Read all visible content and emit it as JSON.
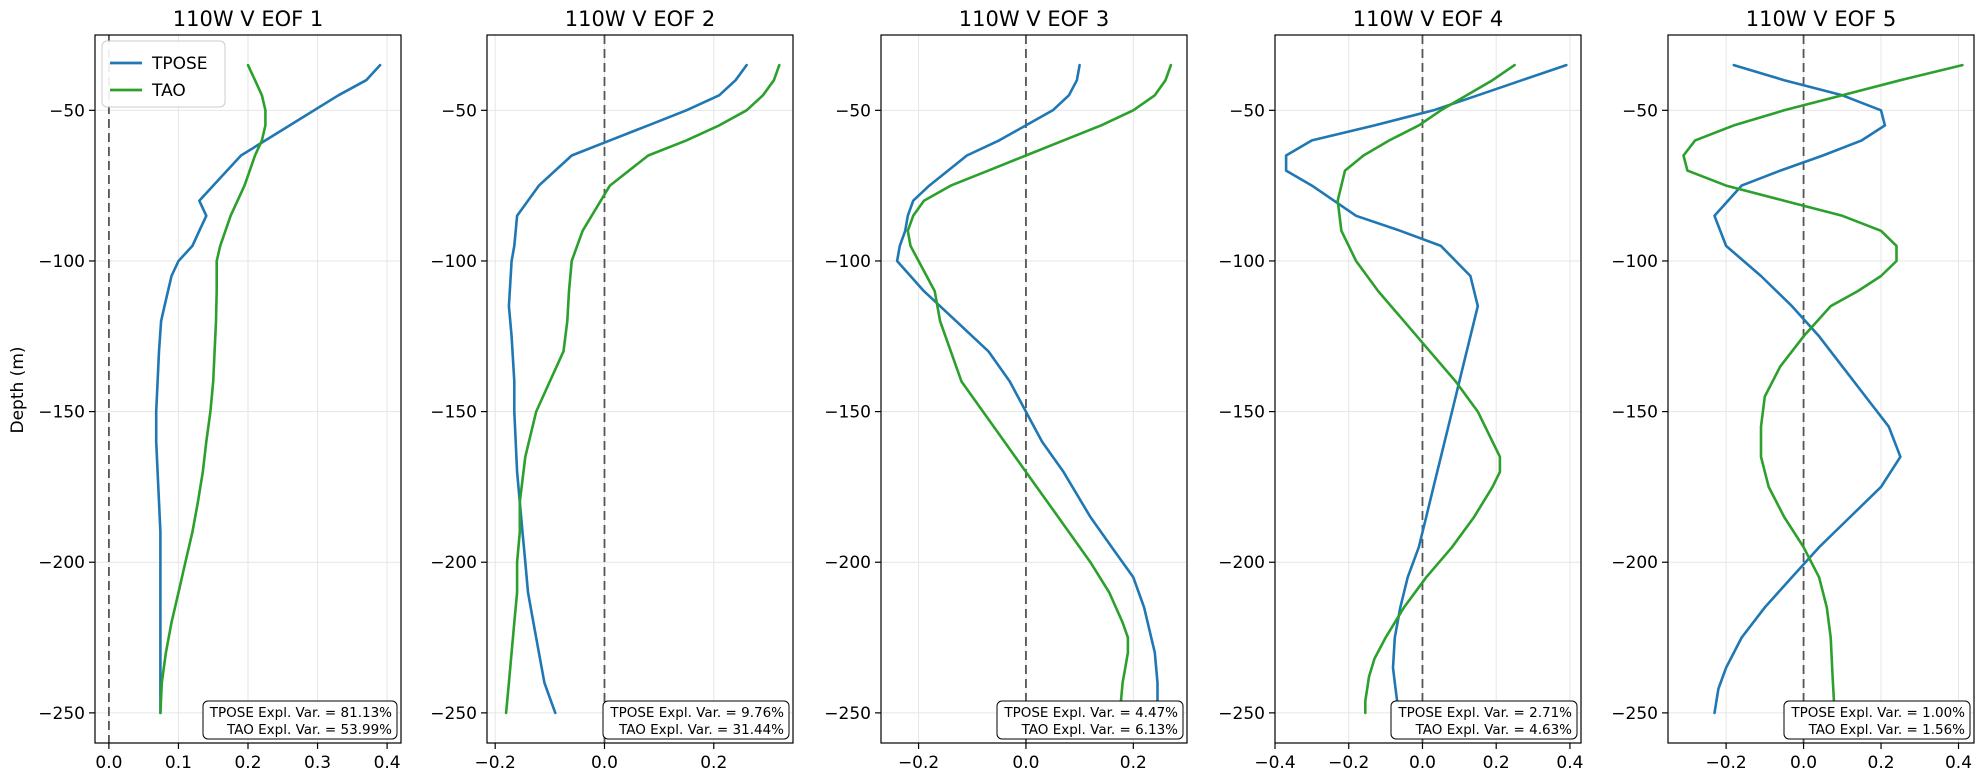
{
  "figure": {
    "ylabel": "Depth (m)",
    "legend": {
      "placement": "upper-left of first panel",
      "entries": [
        "TPOSE",
        "TAO"
      ]
    }
  },
  "colors": {
    "TPOSE": "#1f77b4",
    "TAO": "#2ca02c",
    "zero_line": "#555555",
    "grid": "#e6e6e6"
  },
  "chart_data": [
    {
      "type": "line",
      "title": "110W V EOF 1",
      "xlim": [
        -0.02,
        0.42
      ],
      "ylim": [
        -260,
        -25
      ],
      "xticks": [
        0.0,
        0.1,
        0.2,
        0.3,
        0.4
      ],
      "xtick_labels": [
        "0.0",
        "0.1",
        "0.2",
        "0.3",
        "0.4"
      ],
      "yticks": [
        -50,
        -100,
        -150,
        -200,
        -250
      ],
      "ytick_labels": [
        "−50",
        "−100",
        "−150",
        "−200",
        "−250"
      ],
      "grid": true,
      "zero_line": 0,
      "annotation": [
        "TPOSE Expl. Var. = 81.13%",
        "TAO Expl. Var. = 53.99%"
      ],
      "series": [
        {
          "name": "TPOSE",
          "x": [
            0.39,
            0.37,
            0.33,
            0.26,
            0.19,
            0.15,
            0.13,
            0.14,
            0.13,
            0.12,
            0.1,
            0.09,
            0.085,
            0.08,
            0.075,
            0.072,
            0.07,
            0.068,
            0.068,
            0.07,
            0.072,
            0.074,
            0.074,
            0.074,
            0.074,
            0.074,
            0.074,
            0.074,
            0.074
          ],
          "y": [
            -35,
            -40,
            -45,
            -55,
            -65,
            -75,
            -80,
            -85,
            -90,
            -95,
            -100,
            -105,
            -110,
            -115,
            -120,
            -130,
            -140,
            -150,
            -160,
            -170,
            -180,
            -190,
            -200,
            -210,
            -220,
            -230,
            -240,
            -245,
            -250
          ]
        },
        {
          "name": "TAO",
          "x": [
            0.2,
            0.21,
            0.22,
            0.225,
            0.225,
            0.22,
            0.21,
            0.195,
            0.175,
            0.16,
            0.155,
            0.155,
            0.154,
            0.152,
            0.15,
            0.146,
            0.14,
            0.135,
            0.128,
            0.12,
            0.11,
            0.1,
            0.09,
            0.082,
            0.076,
            0.074
          ],
          "y": [
            -35,
            -40,
            -45,
            -50,
            -55,
            -60,
            -65,
            -75,
            -85,
            -95,
            -100,
            -110,
            -120,
            -130,
            -140,
            -150,
            -160,
            -170,
            -180,
            -190,
            -200,
            -210,
            -220,
            -230,
            -240,
            -250
          ]
        }
      ]
    },
    {
      "type": "line",
      "title": "110W V EOF 2",
      "xlim": [
        -0.215,
        0.345
      ],
      "ylim": [
        -260,
        -25
      ],
      "xticks": [
        -0.2,
        0.0,
        0.2
      ],
      "xtick_labels": [
        "−0.2",
        "0.0",
        "0.2"
      ],
      "yticks": [
        -50,
        -100,
        -150,
        -200,
        -250
      ],
      "ytick_labels": [
        "−50",
        "−100",
        "−150",
        "−200",
        "−250"
      ],
      "grid": true,
      "zero_line": 0,
      "annotation": [
        "TPOSE Expl. Var. = 9.76%",
        "TAO Expl. Var. = 31.44%"
      ],
      "series": [
        {
          "name": "TPOSE",
          "x": [
            0.26,
            0.24,
            0.21,
            0.15,
            0.08,
            0.01,
            -0.06,
            -0.12,
            -0.16,
            -0.165,
            -0.17,
            -0.175,
            -0.17,
            -0.165,
            -0.165,
            -0.16,
            -0.155,
            -0.15,
            -0.145,
            -0.14,
            -0.13,
            -0.12,
            -0.11,
            -0.1,
            -0.09
          ],
          "y": [
            -35,
            -40,
            -45,
            -50,
            -55,
            -60,
            -65,
            -75,
            -85,
            -95,
            -100,
            -115,
            -125,
            -140,
            -150,
            -170,
            -180,
            -190,
            -200,
            -210,
            -220,
            -230,
            -240,
            -245,
            -250
          ]
        },
        {
          "name": "TAO",
          "x": [
            0.32,
            0.31,
            0.29,
            0.26,
            0.21,
            0.15,
            0.08,
            0.01,
            -0.04,
            -0.06,
            -0.065,
            -0.068,
            -0.075,
            -0.1,
            -0.125,
            -0.145,
            -0.155,
            -0.155,
            -0.16,
            -0.16,
            -0.165,
            -0.17,
            -0.175,
            -0.18
          ],
          "y": [
            -35,
            -40,
            -45,
            -50,
            -55,
            -60,
            -65,
            -75,
            -90,
            -100,
            -110,
            -120,
            -130,
            -140,
            -150,
            -165,
            -180,
            -190,
            -200,
            -210,
            -220,
            -230,
            -240,
            -250
          ]
        }
      ]
    },
    {
      "type": "line",
      "title": "110W V EOF 3",
      "xlim": [
        -0.27,
        0.3
      ],
      "ylim": [
        -260,
        -25
      ],
      "xticks": [
        -0.2,
        0.0,
        0.2
      ],
      "xtick_labels": [
        "−0.2",
        "0.0",
        "0.2"
      ],
      "yticks": [
        -50,
        -100,
        -150,
        -200,
        -250
      ],
      "ytick_labels": [
        "−50",
        "−100",
        "−150",
        "−200",
        "−250"
      ],
      "grid": true,
      "zero_line": 0,
      "annotation": [
        "TPOSE Expl. Var. = 4.47%",
        "TAO Expl. Var. = 6.13%"
      ],
      "series": [
        {
          "name": "TPOSE",
          "x": [
            0.1,
            0.095,
            0.08,
            0.05,
            0.0,
            -0.05,
            -0.11,
            -0.18,
            -0.21,
            -0.22,
            -0.225,
            -0.235,
            -0.24,
            -0.19,
            -0.13,
            -0.07,
            -0.03,
            0.0,
            0.03,
            0.07,
            0.12,
            0.16,
            0.2,
            0.22,
            0.24,
            0.245,
            0.245
          ],
          "y": [
            -35,
            -40,
            -45,
            -50,
            -55,
            -60,
            -65,
            -75,
            -80,
            -85,
            -90,
            -95,
            -100,
            -110,
            -120,
            -130,
            -140,
            -150,
            -160,
            -170,
            -185,
            -195,
            -205,
            -215,
            -230,
            -240,
            -250
          ]
        },
        {
          "name": "TAO",
          "x": [
            0.27,
            0.26,
            0.24,
            0.2,
            0.14,
            0.07,
            0.0,
            -0.07,
            -0.14,
            -0.19,
            -0.21,
            -0.22,
            -0.215,
            -0.2,
            -0.17,
            -0.16,
            -0.14,
            -0.12,
            -0.08,
            -0.04,
            0.0,
            0.06,
            0.12,
            0.155,
            0.18,
            0.19,
            0.19,
            0.185,
            0.18,
            0.175
          ],
          "y": [
            -35,
            -40,
            -45,
            -50,
            -55,
            -60,
            -65,
            -70,
            -75,
            -80,
            -85,
            -90,
            -95,
            -100,
            -110,
            -120,
            -130,
            -140,
            -150,
            -160,
            -170,
            -185,
            -200,
            -210,
            -220,
            -225,
            -230,
            -235,
            -240,
            -250
          ]
        }
      ]
    },
    {
      "type": "line",
      "title": "110W V EOF 4",
      "xlim": [
        -0.4,
        0.43
      ],
      "ylim": [
        -260,
        -25
      ],
      "xticks": [
        -0.4,
        -0.2,
        0.0,
        0.2,
        0.4
      ],
      "xtick_labels": [
        "−0.4",
        "−0.2",
        "0.0",
        "0.2",
        "0.4"
      ],
      "yticks": [
        -50,
        -100,
        -150,
        -200,
        -250
      ],
      "ytick_labels": [
        "−50",
        "−100",
        "−150",
        "−200",
        "−250"
      ],
      "grid": true,
      "zero_line": 0,
      "annotation": [
        "TPOSE Expl. Var. = 2.71%",
        "TAO Expl. Var. = 4.63%"
      ],
      "series": [
        {
          "name": "TPOSE",
          "x": [
            0.39,
            0.27,
            0.15,
            0.03,
            -0.13,
            -0.3,
            -0.37,
            -0.37,
            -0.3,
            -0.18,
            -0.06,
            0.05,
            0.13,
            0.15,
            0.13,
            0.11,
            0.09,
            0.07,
            0.05,
            0.03,
            0.01,
            -0.01,
            -0.04,
            -0.06,
            -0.075,
            -0.08,
            -0.075,
            -0.07,
            -0.065
          ],
          "y": [
            -35,
            -40,
            -45,
            -50,
            -55,
            -60,
            -65,
            -70,
            -75,
            -85,
            -90,
            -95,
            -105,
            -115,
            -125,
            -135,
            -145,
            -155,
            -165,
            -175,
            -185,
            -195,
            -205,
            -215,
            -225,
            -235,
            -240,
            -245,
            -250
          ]
        },
        {
          "name": "TAO",
          "x": [
            0.25,
            0.19,
            0.12,
            0.05,
            -0.01,
            -0.09,
            -0.16,
            -0.21,
            -0.23,
            -0.22,
            -0.18,
            -0.12,
            -0.05,
            0.02,
            0.09,
            0.15,
            0.19,
            0.21,
            0.21,
            0.19,
            0.14,
            0.08,
            0.01,
            -0.05,
            -0.1,
            -0.13,
            -0.145,
            -0.15,
            -0.155,
            -0.155
          ],
          "y": [
            -35,
            -40,
            -45,
            -50,
            -55,
            -60,
            -65,
            -70,
            -80,
            -90,
            -100,
            -110,
            -120,
            -130,
            -140,
            -150,
            -160,
            -165,
            -170,
            -175,
            -185,
            -195,
            -205,
            -215,
            -225,
            -232,
            -238,
            -242,
            -246,
            -250
          ]
        }
      ]
    },
    {
      "type": "line",
      "title": "110W V EOF 5",
      "xlim": [
        -0.35,
        0.44
      ],
      "ylim": [
        -260,
        -25
      ],
      "xticks": [
        -0.2,
        0.0,
        0.2,
        0.4
      ],
      "xtick_labels": [
        "−0.2",
        "0.0",
        "0.2",
        "0.4"
      ],
      "yticks": [
        -50,
        -100,
        -150,
        -200,
        -250
      ],
      "ytick_labels": [
        "−50",
        "−100",
        "−150",
        "−200",
        "−250"
      ],
      "grid": true,
      "zero_line": 0,
      "annotation": [
        "TPOSE Expl. Var. = 1.00%",
        "TAO Expl. Var. = 1.56%"
      ],
      "series": [
        {
          "name": "TPOSE",
          "x": [
            -0.18,
            -0.05,
            0.1,
            0.2,
            0.21,
            0.15,
            0.05,
            -0.06,
            -0.16,
            -0.23,
            -0.2,
            -0.11,
            -0.03,
            0.04,
            0.1,
            0.16,
            0.22,
            0.25,
            0.2,
            0.12,
            0.04,
            -0.03,
            -0.1,
            -0.16,
            -0.2,
            -0.22,
            -0.23
          ],
          "y": [
            -35,
            -40,
            -45,
            -50,
            -55,
            -60,
            -65,
            -70,
            -75,
            -85,
            -95,
            -105,
            -115,
            -125,
            -135,
            -145,
            -155,
            -165,
            -175,
            -185,
            -195,
            -205,
            -215,
            -225,
            -235,
            -242,
            -250
          ]
        },
        {
          "name": "TAO",
          "x": [
            0.41,
            0.25,
            0.1,
            -0.05,
            -0.18,
            -0.28,
            -0.31,
            -0.3,
            -0.2,
            -0.05,
            0.1,
            0.2,
            0.24,
            0.24,
            0.2,
            0.14,
            0.07,
            0.0,
            -0.06,
            -0.1,
            -0.11,
            -0.11,
            -0.09,
            -0.05,
            0.0,
            0.04,
            0.06,
            0.07,
            0.075,
            0.08
          ],
          "y": [
            -35,
            -40,
            -45,
            -50,
            -55,
            -60,
            -65,
            -70,
            -75,
            -80,
            -85,
            -90,
            -95,
            -100,
            -105,
            -110,
            -115,
            -125,
            -135,
            -145,
            -155,
            -165,
            -175,
            -185,
            -195,
            -205,
            -215,
            -225,
            -238,
            -250
          ]
        }
      ]
    }
  ]
}
